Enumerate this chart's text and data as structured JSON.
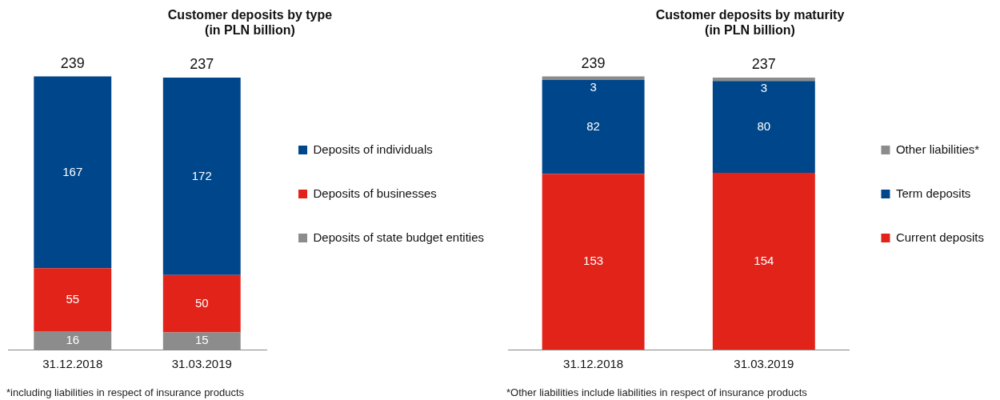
{
  "chart_data": [
    {
      "type": "bar",
      "title": "Customer deposits by type\n(in PLN billion)",
      "categories": [
        "31.12.2018",
        "31.03.2019"
      ],
      "stacked": true,
      "data_labels": true,
      "totals": [
        "239",
        "237"
      ],
      "legend": "right",
      "grid": false,
      "tick_labels": "x",
      "series": [
        {
          "name": "Deposits of state budget entities",
          "color": "#8c8c8c",
          "values": [
            16,
            15
          ]
        },
        {
          "name": "Deposits of businesses",
          "color": "#e2231a",
          "values": [
            55,
            50
          ]
        },
        {
          "name": "Deposits of individuals",
          "color": "#00468b",
          "values": [
            167,
            172
          ]
        }
      ],
      "annotations": [
        "*including liabilities in respect of insurance products"
      ]
    },
    {
      "type": "bar",
      "title": "Customer deposits by maturity\n(in PLN billion)",
      "categories": [
        "31.12.2018",
        "31.03.2019"
      ],
      "stacked": true,
      "data_labels": true,
      "totals": [
        "239",
        "237"
      ],
      "legend": "right",
      "grid": false,
      "tick_labels": "x",
      "series": [
        {
          "name": "Current deposits",
          "color": "#e2231a",
          "values": [
            153,
            154
          ]
        },
        {
          "name": "Term deposits",
          "color": "#00468b",
          "values": [
            82,
            80
          ]
        },
        {
          "name": "Other liabilities*",
          "color": "#8c8c8c",
          "values": [
            3,
            3
          ]
        }
      ],
      "annotations": [
        "*Other liabilities include liabilities in respect of insurance products"
      ]
    }
  ]
}
